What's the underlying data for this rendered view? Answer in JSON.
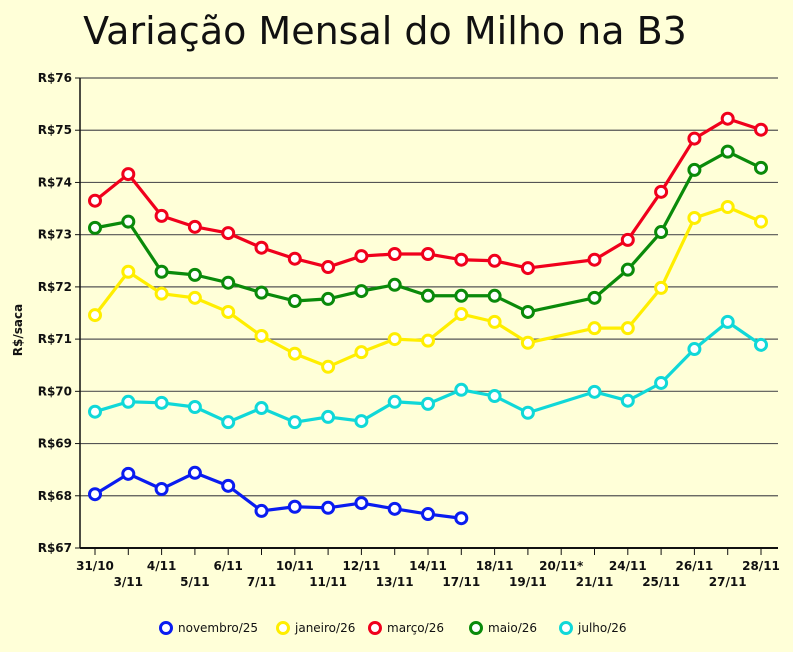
{
  "chart_data": {
    "type": "line",
    "title": "Variação Mensal do Milho na B3",
    "xlabel": "",
    "ylabel": "R$/saca",
    "ylim": [
      67,
      76
    ],
    "yticks": [
      "R$67",
      "R$68",
      "R$69",
      "R$70",
      "R$71",
      "R$72",
      "R$73",
      "R$74",
      "R$75",
      "R$76"
    ],
    "grid": true,
    "legend": "bottom",
    "categories": [
      "31/10",
      "3/11",
      "4/11",
      "5/11",
      "6/11",
      "7/11",
      "10/11",
      "11/11",
      "12/11",
      "13/11",
      "14/11",
      "17/11",
      "18/11",
      "19/11",
      "20/11*",
      "21/11",
      "24/11",
      "25/11",
      "26/11",
      "27/11",
      "28/11"
    ],
    "series": [
      {
        "name": "novembro/25",
        "color": "#0a1cf0",
        "values": [
          68.03,
          68.42,
          68.13,
          68.44,
          68.19,
          67.71,
          67.79,
          67.77,
          67.86,
          67.75,
          67.65,
          67.57,
          null,
          null,
          null,
          null,
          null,
          null,
          null,
          null,
          null
        ]
      },
      {
        "name": "janeiro/26",
        "color": "#ffee00",
        "values": [
          71.46,
          72.29,
          71.87,
          71.79,
          71.52,
          71.06,
          70.72,
          70.47,
          70.75,
          71.0,
          70.97,
          71.48,
          71.33,
          70.93,
          null,
          71.21,
          71.21,
          71.98,
          73.32,
          73.53,
          73.25
        ]
      },
      {
        "name": "março/26",
        "color": "#f0001c",
        "values": [
          73.65,
          74.16,
          73.36,
          73.15,
          73.03,
          72.75,
          72.54,
          72.38,
          72.59,
          72.63,
          72.63,
          72.52,
          72.5,
          72.36,
          null,
          72.52,
          72.9,
          73.82,
          74.84,
          75.22,
          75.01
        ]
      },
      {
        "name": "maio/26",
        "color": "#0a8a0a",
        "values": [
          73.13,
          73.25,
          72.29,
          72.23,
          72.08,
          71.89,
          71.73,
          71.77,
          71.92,
          72.04,
          71.83,
          71.83,
          71.83,
          71.52,
          null,
          71.79,
          72.33,
          73.05,
          74.24,
          74.59,
          74.28
        ]
      },
      {
        "name": "julho/26",
        "color": "#10d8d8",
        "values": [
          69.61,
          69.8,
          69.78,
          69.7,
          69.41,
          69.68,
          69.41,
          69.51,
          69.43,
          69.8,
          69.76,
          70.03,
          69.91,
          69.59,
          null,
          69.99,
          69.82,
          70.16,
          70.81,
          71.33,
          70.89
        ]
      }
    ]
  }
}
